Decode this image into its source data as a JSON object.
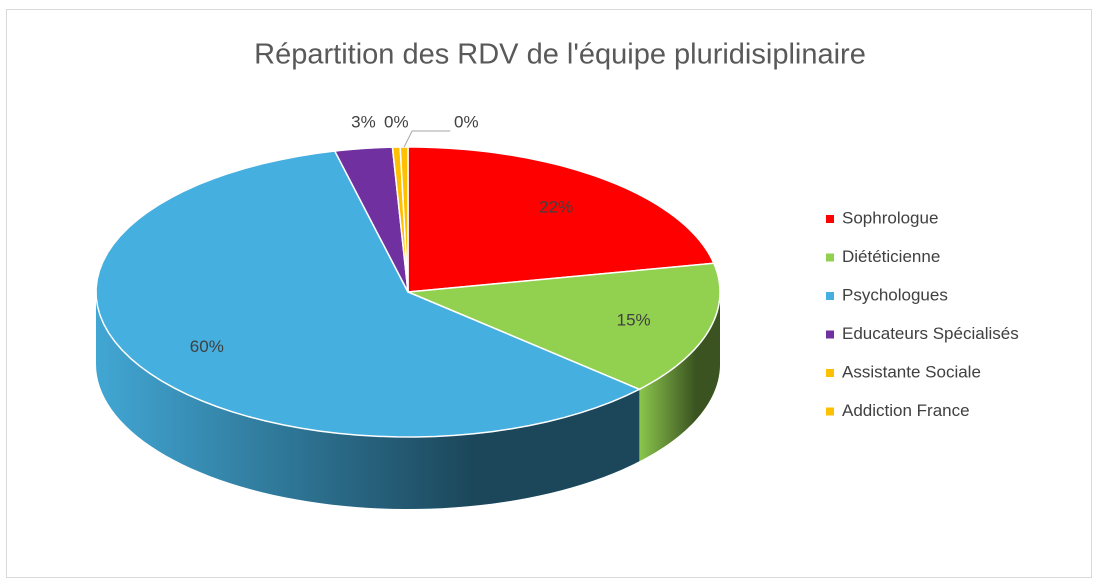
{
  "chart_data": {
    "type": "pie",
    "title": "Répartition des RDV de l'équipe pluridisiplinaire",
    "categories": [
      "Sophrologue",
      "Diététicienne",
      "Psychologues",
      "Educateurs Spécialisés",
      "Assistante Sociale",
      "Addiction France"
    ],
    "values": [
      22,
      15,
      60,
      3,
      0.4,
      0.4
    ],
    "value_labels": [
      "22%",
      "15%",
      "60%",
      "3%",
      "0%",
      "0%"
    ],
    "colors": [
      "#ff0000",
      "#92d050",
      "#45afdf",
      "#7030a0",
      "#ffc000",
      "#ffc000"
    ],
    "legend": "right"
  }
}
